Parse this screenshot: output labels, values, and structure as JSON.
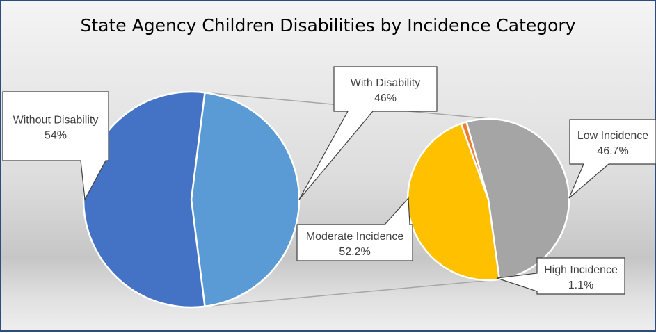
{
  "chart_data": {
    "type": "pie",
    "title": "State Agency Children Disabilities by Incidence Category",
    "primary": {
      "slices": [
        {
          "label": "Without Disability",
          "value": 54,
          "value_label": "54%",
          "color": "#4472c4"
        },
        {
          "label": "With Disability",
          "value": 46,
          "value_label": "46%",
          "color": "#5b9bd5"
        }
      ]
    },
    "secondary": {
      "parent": "With Disability",
      "slices": [
        {
          "label": "Low Incidence",
          "value": 46.7,
          "value_label": "46.7%",
          "color": "#ffc000"
        },
        {
          "label": "High Incidence",
          "value": 1.1,
          "value_label": "1.1%",
          "color": "#ed7d31"
        },
        {
          "label": "Moderate Incidence",
          "value": 52.2,
          "value_label": "52.2%",
          "color": "#a5a5a5"
        }
      ]
    }
  }
}
